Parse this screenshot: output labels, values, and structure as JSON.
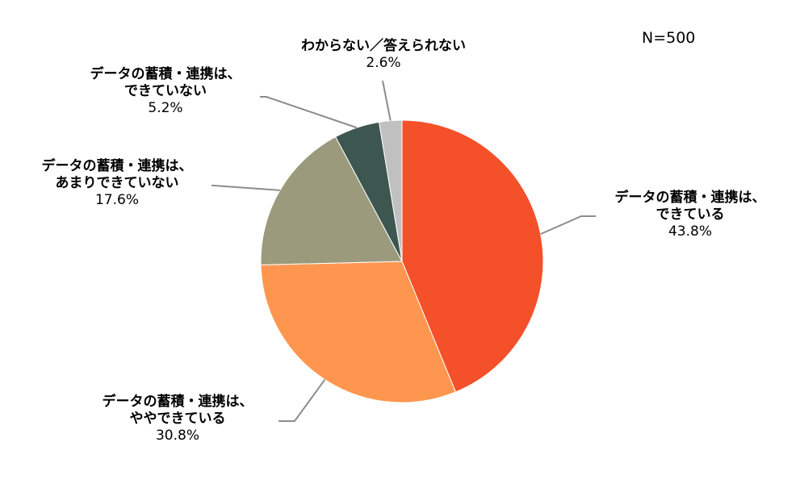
{
  "n_label": "N=500",
  "chart_data": {
    "type": "pie",
    "start_angle_deg": 0,
    "direction": "clockwise",
    "slices": [
      {
        "key": "can",
        "line1": "データの蓄積・連携は、",
        "line2": "できている",
        "value": 43.8,
        "pct_label": "43.8%",
        "color": "#F4502A"
      },
      {
        "key": "somewhat",
        "line1": "データの蓄積・連携は、",
        "line2": "ややできている",
        "value": 30.8,
        "pct_label": "30.8%",
        "color": "#FF964F"
      },
      {
        "key": "not-much",
        "line1": "データの蓄積・連携は、",
        "line2": "あまりできていない",
        "value": 17.6,
        "pct_label": "17.6%",
        "color": "#9C9A7C"
      },
      {
        "key": "cannot",
        "line1": "データの蓄積・連携は、",
        "line2": "できていない",
        "value": 5.2,
        "pct_label": "5.2%",
        "color": "#3E5650"
      },
      {
        "key": "unknown",
        "line1": "わからない／答えられない",
        "line2": "",
        "value": 2.6,
        "pct_label": "2.6%",
        "color": "#C0C0C0"
      }
    ]
  }
}
